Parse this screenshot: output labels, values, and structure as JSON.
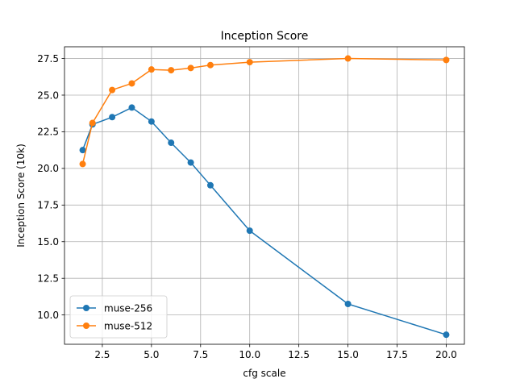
{
  "chart_data": {
    "type": "line",
    "title": "Inception Score",
    "xlabel": "cfg scale",
    "ylabel": "Inception Score (10k)",
    "xlim": [
      0.575,
      20.925
    ],
    "ylim": [
      8.0,
      28.3
    ],
    "xticks": [
      2.5,
      5.0,
      7.5,
      10.0,
      12.5,
      15.0,
      17.5,
      20.0
    ],
    "xtick_labels": [
      "2.5",
      "5.0",
      "7.5",
      "10.0",
      "12.5",
      "15.0",
      "17.5",
      "20.0"
    ],
    "yticks": [
      10.0,
      12.5,
      15.0,
      17.5,
      20.0,
      22.5,
      25.0,
      27.5
    ],
    "ytick_labels": [
      "10.0",
      "12.5",
      "15.0",
      "17.5",
      "20.0",
      "22.5",
      "25.0",
      "27.5"
    ],
    "grid": true,
    "legend_position": "lower-left",
    "series": [
      {
        "name": "muse-256",
        "color": "#1f77b4",
        "x": [
          1.5,
          2,
          3,
          4,
          5,
          6,
          7,
          8,
          10,
          15,
          20
        ],
        "y": [
          21.25,
          23.0,
          23.5,
          24.15,
          23.2,
          21.75,
          20.4,
          18.85,
          15.75,
          10.75,
          8.65
        ]
      },
      {
        "name": "muse-512",
        "color": "#ff7f0e",
        "x": [
          1.5,
          2,
          3,
          4,
          5,
          6,
          7,
          8,
          10,
          15,
          20
        ],
        "y": [
          20.3,
          23.1,
          25.35,
          25.8,
          26.75,
          26.7,
          26.85,
          27.05,
          27.25,
          27.5,
          27.4
        ]
      }
    ]
  }
}
